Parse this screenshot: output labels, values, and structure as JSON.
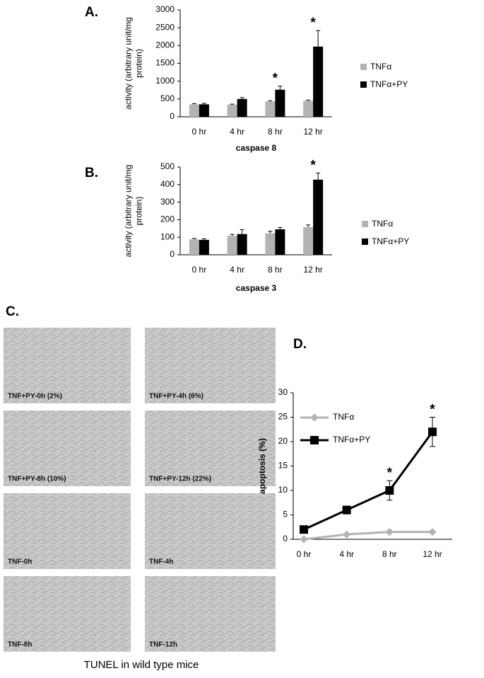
{
  "chart_data": [
    {
      "type": "bar",
      "label": "A.",
      "ylabel": [
        "activity (arbitrary unit/mg",
        "protein)"
      ],
      "xlabel": "caspase 8",
      "categories": [
        "0 hr",
        "4 hr",
        "8 hr",
        "12 hr"
      ],
      "series": [
        {
          "name": "TNFα",
          "color": "#b3b3b3",
          "values": [
            350,
            340,
            430,
            450
          ],
          "errors": [
            20,
            15,
            20,
            20
          ],
          "significance": [
            null,
            null,
            null,
            null
          ]
        },
        {
          "name": "TNFα+PY",
          "color": "#000000",
          "values": [
            350,
            500,
            760,
            1970
          ],
          "errors": [
            30,
            40,
            100,
            450
          ],
          "significance": [
            null,
            null,
            "*",
            "*"
          ]
        }
      ],
      "ylim": [
        0,
        3000
      ],
      "yticks": [
        0,
        500,
        1000,
        1500,
        2000,
        2500,
        3000
      ],
      "grid": false
    },
    {
      "type": "bar",
      "label": "B.",
      "ylabel": [
        "activity (arbitrary unit/mg",
        "protein)"
      ],
      "xlabel": "caspase 3",
      "categories": [
        "0 hr",
        "4 hr",
        "8 hr",
        "12 hr"
      ],
      "series": [
        {
          "name": "TNFα",
          "color": "#b3b3b3",
          "values": [
            88,
            108,
            122,
            158
          ],
          "errors": [
            5,
            8,
            12,
            12
          ],
          "significance": [
            null,
            null,
            null,
            null
          ]
        },
        {
          "name": "TNFα+PY",
          "color": "#000000",
          "values": [
            85,
            118,
            145,
            428
          ],
          "errors": [
            6,
            25,
            10,
            38
          ],
          "significance": [
            null,
            null,
            null,
            "*"
          ]
        }
      ],
      "ylim": [
        0,
        500
      ],
      "yticks": [
        0,
        100,
        200,
        300,
        400,
        500
      ],
      "grid": false
    },
    {
      "type": "line",
      "label": "D.",
      "ylabel": [
        "apoptosis (%)"
      ],
      "categories": [
        "0 hr",
        "4 hr",
        "8 hr",
        "12 hr"
      ],
      "series": [
        {
          "name": "TNFα",
          "color": "#b3b3b3",
          "values": [
            0,
            1,
            1.5,
            1.5
          ],
          "errors": [
            null,
            null,
            null,
            null
          ],
          "significance": [
            null,
            null,
            null,
            null
          ]
        },
        {
          "name": "TNFα+PY",
          "color": "#000000",
          "values": [
            2,
            6,
            10,
            22
          ],
          "errors": [
            0.3,
            0.8,
            2,
            3
          ],
          "significance": [
            null,
            null,
            "*",
            "*"
          ]
        }
      ],
      "ylim": [
        0,
        30
      ],
      "yticks": [
        0,
        5,
        10,
        15,
        20,
        25,
        30
      ],
      "grid": false
    }
  ],
  "images": {
    "label": "C.",
    "panels": [
      "TNF+PY-0h (2%)",
      "TNF+PY-4h (6%)",
      "TNF+PY-8h (10%)",
      "TNF+PY-12h (22%)",
      "TNF-0h",
      "TNF-4h",
      "TNF-8h",
      "TNF-12h"
    ],
    "caption": "TUNEL in wild type mice"
  }
}
